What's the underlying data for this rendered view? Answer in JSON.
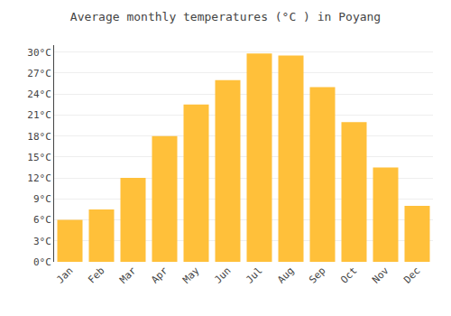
{
  "chart_data": {
    "type": "bar",
    "title": "Average monthly temperatures (°C ) in Poyang",
    "categories": [
      "Jan",
      "Feb",
      "Mar",
      "Apr",
      "May",
      "Jun",
      "Jul",
      "Aug",
      "Sep",
      "Oct",
      "Nov",
      "Dec"
    ],
    "values": [
      6,
      7.5,
      12,
      18,
      22.5,
      26,
      29.8,
      29.5,
      25,
      20,
      13.5,
      8
    ],
    "color": "#FFC03A",
    "ylim": [
      0,
      31
    ],
    "yticks": [
      {
        "value": 0,
        "label": "0°C"
      },
      {
        "value": 3,
        "label": "3°C"
      },
      {
        "value": 6,
        "label": "6°C"
      },
      {
        "value": 9,
        "label": "9°C"
      },
      {
        "value": 12,
        "label": "12°C"
      },
      {
        "value": 15,
        "label": "15°C"
      },
      {
        "value": 18,
        "label": "18°C"
      },
      {
        "value": 21,
        "label": "21°C"
      },
      {
        "value": 24,
        "label": "24°C"
      },
      {
        "value": 27,
        "label": "27°C"
      },
      {
        "value": 30,
        "label": "30°C"
      }
    ],
    "grid": true
  }
}
